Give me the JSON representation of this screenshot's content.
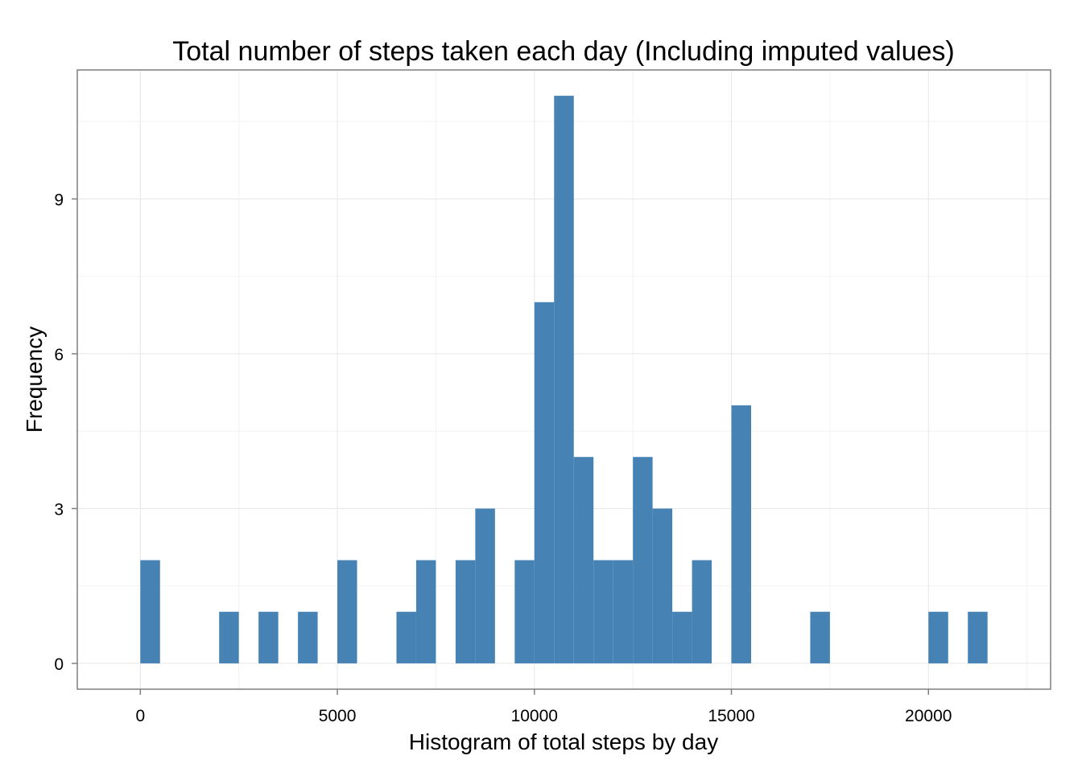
{
  "chart_data": {
    "type": "bar",
    "title": "Total number of steps taken each day (Including imputed values)",
    "xlabel": "Histogram of total steps by day",
    "ylabel": "Frequency",
    "bar_color": "#4682B4",
    "grid": true,
    "bin_width": 500,
    "xlim": [
      -1600,
      23100
    ],
    "ylim": [
      -0.5,
      11.5
    ],
    "x_ticks": [
      {
        "value": 0,
        "label": "0"
      },
      {
        "value": 5000,
        "label": "5000"
      },
      {
        "value": 10000,
        "label": "10000"
      },
      {
        "value": 15000,
        "label": "15000"
      },
      {
        "value": 20000,
        "label": "20000"
      }
    ],
    "y_ticks": [
      {
        "value": 0,
        "label": "0"
      },
      {
        "value": 3,
        "label": "3"
      },
      {
        "value": 6,
        "label": "6"
      },
      {
        "value": 9,
        "label": "9"
      }
    ],
    "bins": [
      {
        "x0": 0,
        "x1": 500,
        "count": 2
      },
      {
        "x0": 2000,
        "x1": 2500,
        "count": 1
      },
      {
        "x0": 3000,
        "x1": 3500,
        "count": 1
      },
      {
        "x0": 4000,
        "x1": 4500,
        "count": 1
      },
      {
        "x0": 5000,
        "x1": 5500,
        "count": 2
      },
      {
        "x0": 6500,
        "x1": 7000,
        "count": 1
      },
      {
        "x0": 7000,
        "x1": 7500,
        "count": 2
      },
      {
        "x0": 8000,
        "x1": 8500,
        "count": 2
      },
      {
        "x0": 8500,
        "x1": 9000,
        "count": 3
      },
      {
        "x0": 9500,
        "x1": 10000,
        "count": 2
      },
      {
        "x0": 10000,
        "x1": 10500,
        "count": 7
      },
      {
        "x0": 10500,
        "x1": 11000,
        "count": 11
      },
      {
        "x0": 11000,
        "x1": 11500,
        "count": 4
      },
      {
        "x0": 11500,
        "x1": 12000,
        "count": 2
      },
      {
        "x0": 12000,
        "x1": 12500,
        "count": 2
      },
      {
        "x0": 12500,
        "x1": 13000,
        "count": 4
      },
      {
        "x0": 13000,
        "x1": 13500,
        "count": 3
      },
      {
        "x0": 13500,
        "x1": 14000,
        "count": 1
      },
      {
        "x0": 14000,
        "x1": 14500,
        "count": 2
      },
      {
        "x0": 15000,
        "x1": 15500,
        "count": 5
      },
      {
        "x0": 17000,
        "x1": 17500,
        "count": 1
      },
      {
        "x0": 20000,
        "x1": 20500,
        "count": 1
      },
      {
        "x0": 21000,
        "x1": 21500,
        "count": 1
      }
    ]
  }
}
